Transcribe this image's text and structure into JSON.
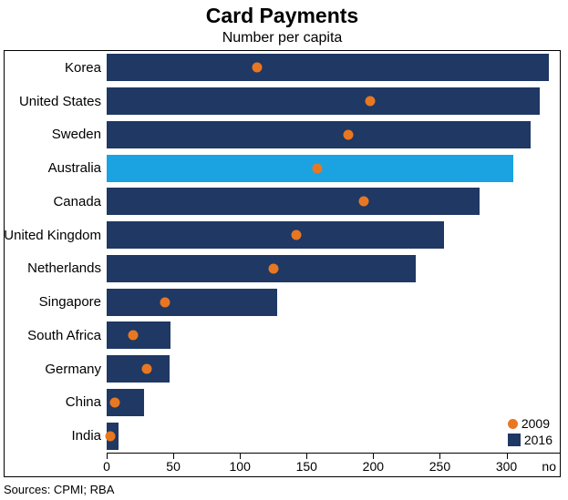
{
  "chart": {
    "type": "bar",
    "title": "Card Payments",
    "subtitle": "Number per capita",
    "title_fontsize": 23,
    "subtitle_fontsize": 16,
    "bar_color_default": "#1f3864",
    "bar_color_highlight": "#1ba3e1",
    "marker_color": "#e87722",
    "background_color": "#ffffff",
    "border_color": "#000000",
    "xlim": [
      0,
      340
    ],
    "xticks": [
      0,
      50,
      100,
      150,
      200,
      250,
      300
    ],
    "xaxis_end_label": "no",
    "rows": [
      {
        "label": "Korea",
        "v2016": 332,
        "v2009": 113,
        "highlight": false
      },
      {
        "label": "United States",
        "v2016": 325,
        "v2009": 198,
        "highlight": false
      },
      {
        "label": "Sweden",
        "v2016": 318,
        "v2009": 181,
        "highlight": false
      },
      {
        "label": "Australia",
        "v2016": 305,
        "v2009": 158,
        "highlight": true
      },
      {
        "label": "Canada",
        "v2016": 280,
        "v2009": 193,
        "highlight": false
      },
      {
        "label": "United Kingdom",
        "v2016": 253,
        "v2009": 142,
        "highlight": false
      },
      {
        "label": "Netherlands",
        "v2016": 232,
        "v2009": 125,
        "highlight": false
      },
      {
        "label": "Singapore",
        "v2016": 128,
        "v2009": 44,
        "highlight": false
      },
      {
        "label": "South Africa",
        "v2016": 48,
        "v2009": 20,
        "highlight": false
      },
      {
        "label": "Germany",
        "v2016": 47,
        "v2009": 30,
        "highlight": false
      },
      {
        "label": "China",
        "v2016": 28,
        "v2009": 6,
        "highlight": false
      },
      {
        "label": "India",
        "v2016": 9,
        "v2009": 3,
        "highlight": false
      }
    ],
    "legend": [
      {
        "marker": "dot",
        "color": "#e87722",
        "label": "2009"
      },
      {
        "marker": "square",
        "color": "#1f3864",
        "label": "2016"
      }
    ],
    "sources": "Sources: CPMI; RBA"
  }
}
